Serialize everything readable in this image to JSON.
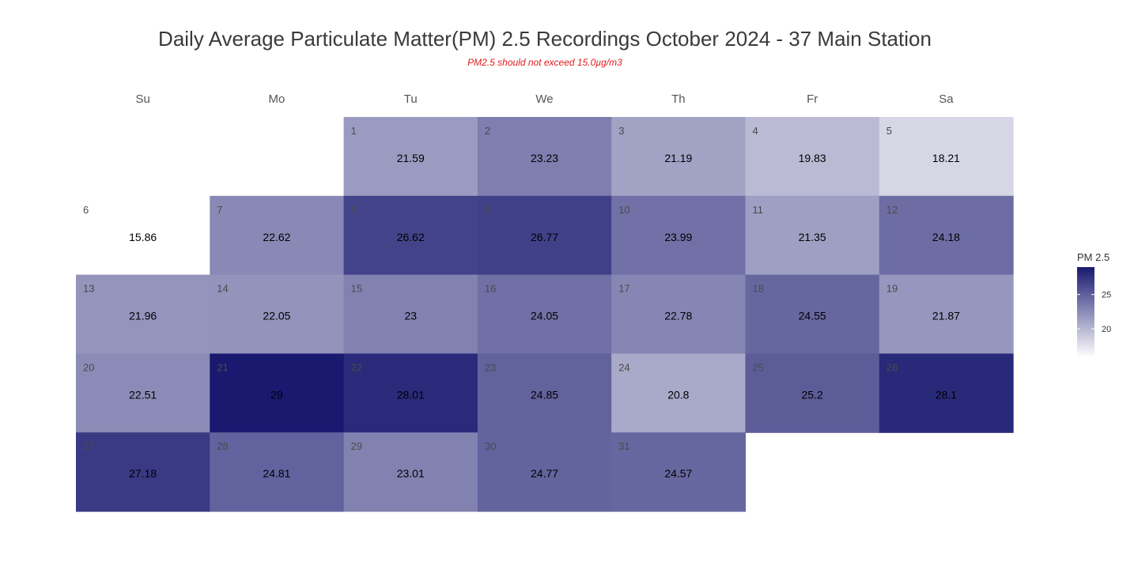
{
  "chart_data": {
    "type": "heatmap",
    "title": "Daily Average Particulate Matter(PM) 2.5 Recordings October 2024 -  37 Main Station",
    "subtitle": "PM2.5 should not exceed 15.0µg/m3",
    "weekdays": [
      "Su",
      "Mo",
      "Tu",
      "We",
      "Th",
      "Fr",
      "Sa"
    ],
    "first_weekday_index": 2,
    "days": [
      1,
      2,
      3,
      4,
      5,
      6,
      7,
      8,
      9,
      10,
      11,
      12,
      13,
      14,
      15,
      16,
      17,
      18,
      19,
      20,
      21,
      22,
      23,
      24,
      25,
      26,
      27,
      28,
      29,
      30,
      31
    ],
    "labels": [
      "21.59",
      "23.23",
      "21.19",
      "19.83",
      "18.21",
      "15.86",
      "22.62",
      "26.62",
      "26.77",
      "23.99",
      "21.35",
      "24.18",
      "21.96",
      "22.05",
      "23",
      "24.05",
      "22.78",
      "24.55",
      "21.87",
      "22.51",
      "29",
      "28.01",
      "24.85",
      "20.8",
      "25.2",
      "28.1",
      "27.18",
      "24.81",
      "23.01",
      "24.77",
      "24.57"
    ],
    "values": [
      21.59,
      23.23,
      21.19,
      19.83,
      18.21,
      15.86,
      22.62,
      26.62,
      26.77,
      23.99,
      21.35,
      24.18,
      21.96,
      22.05,
      23,
      24.05,
      22.78,
      24.55,
      21.87,
      22.51,
      29,
      28.01,
      24.85,
      20.8,
      25.2,
      28.1,
      27.18,
      24.81,
      23.01,
      24.77,
      24.57
    ],
    "legend": {
      "title": "PM 2.5",
      "ticks": [
        20,
        25
      ],
      "range": [
        15.86,
        29
      ],
      "color_low": "#ffffff",
      "color_high": "#191970",
      "position": "right"
    }
  }
}
